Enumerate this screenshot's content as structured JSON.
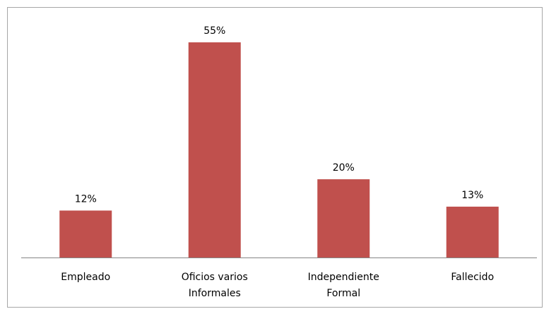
{
  "chart_data": {
    "type": "bar",
    "categories": [
      "Empleado",
      "Oficios varios\nInformales",
      "Independiente\nFormal",
      "Fallecido"
    ],
    "values": [
      12,
      55,
      20,
      13
    ],
    "value_labels": [
      "12%",
      "55%",
      "20%",
      "13%"
    ],
    "color": "#c0504d"
  }
}
